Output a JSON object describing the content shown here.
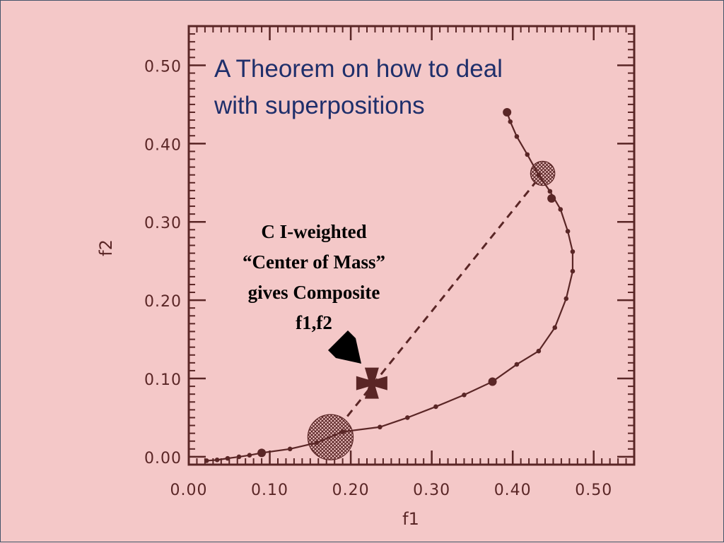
{
  "chart_data": {
    "type": "line",
    "title_lines": [
      "A Theorem on how to deal",
      "with superpositions"
    ],
    "xlabel": "f1",
    "ylabel": "f2",
    "xlim": [
      0.0,
      0.55
    ],
    "ylim": [
      -0.01,
      0.55
    ],
    "x_ticks": [
      "0.00",
      "0.10",
      "0.20",
      "0.30",
      "0.40",
      "0.50"
    ],
    "y_ticks": [
      "0.00",
      "0.10",
      "0.20",
      "0.30",
      "0.40",
      "0.50"
    ],
    "x_tick_values": [
      0.0,
      0.1,
      0.2,
      0.3,
      0.4,
      0.5
    ],
    "y_tick_values": [
      0.0,
      0.1,
      0.2,
      0.3,
      0.4,
      0.5
    ],
    "curve": {
      "x": [
        0.022,
        0.035,
        0.048,
        0.062,
        0.075,
        0.09,
        0.125,
        0.158,
        0.19,
        0.236,
        0.27,
        0.305,
        0.34,
        0.375,
        0.405,
        0.432,
        0.452,
        0.466,
        0.474,
        0.474,
        0.468,
        0.459,
        0.446,
        0.432,
        0.418,
        0.405,
        0.397,
        0.393
      ],
      "y": [
        -0.005,
        -0.004,
        -0.002,
        0.0,
        0.002,
        0.005,
        0.01,
        0.018,
        0.032,
        0.038,
        0.05,
        0.064,
        0.079,
        0.096,
        0.118,
        0.135,
        0.165,
        0.202,
        0.237,
        0.262,
        0.288,
        0.316,
        0.339,
        0.36,
        0.386,
        0.409,
        0.428,
        0.44
      ]
    },
    "large_dots": [
      {
        "x": 0.09,
        "y": 0.005
      },
      {
        "x": 0.375,
        "y": 0.096
      },
      {
        "x": 0.448,
        "y": 0.33
      },
      {
        "x": 0.393,
        "y": 0.44
      }
    ],
    "hatched_circles": [
      {
        "x": 0.175,
        "y": 0.025,
        "r": 0.028
      },
      {
        "x": 0.437,
        "y": 0.362,
        "r": 0.015
      }
    ],
    "dashed_line": {
      "x": [
        0.175,
        0.437
      ],
      "y": [
        0.025,
        0.362
      ]
    },
    "composite_marker": {
      "x": 0.226,
      "y": 0.094
    },
    "annotation_lines": [
      "C I-weighted",
      "“Center of Mass”",
      "gives Composite",
      "f1,f2"
    ],
    "grid": false,
    "colors": {
      "background": "#f4c8c8",
      "axis": "#5a2626",
      "curve": "#5a2626",
      "title": "#1f2f6b",
      "annotation": "#000000"
    }
  }
}
